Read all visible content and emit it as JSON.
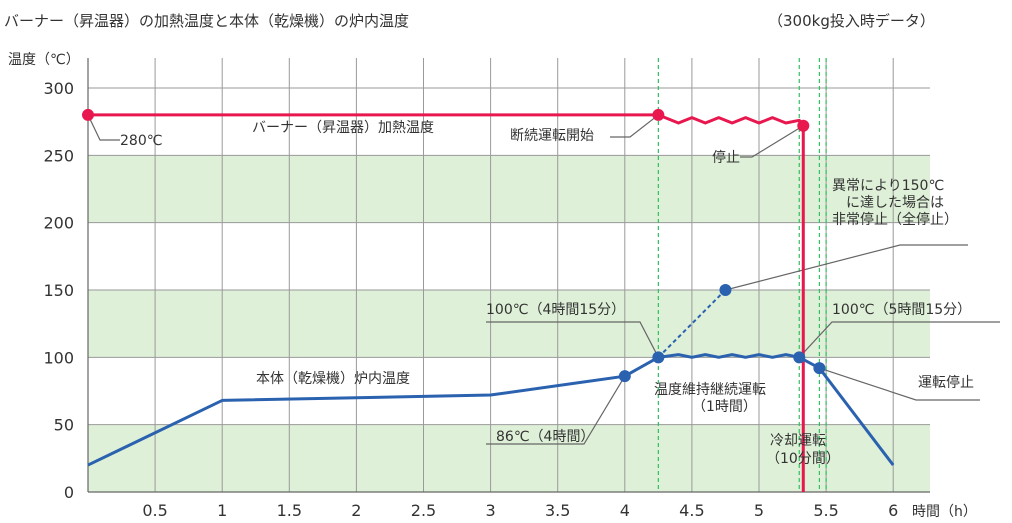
{
  "title": "バーナー（昇温器）の加熱温度と本体（乾燥機）の炉内温度",
  "subtitle": "（300kg投入時データ）",
  "colors": {
    "band": "#dff0d8",
    "grid": "#9a9a9a",
    "burner": "#e8174d",
    "body": "#2a62b0",
    "guide": "#2fbf60"
  },
  "chart_data": {
    "type": "line",
    "xlabel": "時間（h）",
    "ylabel": "温度（℃）",
    "xlim": [
      0,
      6.3
    ],
    "ylim": [
      0,
      300
    ],
    "x_ticks": [
      "0.5",
      "1",
      "1.5",
      "2",
      "2.5",
      "3",
      "3.5",
      "4",
      "4.5",
      "5",
      "5.5",
      "6"
    ],
    "y_ticks": [
      "0",
      "50",
      "100",
      "150",
      "200",
      "250",
      "300"
    ],
    "grid": true,
    "bands": [
      [
        0,
        50
      ],
      [
        100,
        150
      ],
      [
        200,
        250
      ]
    ],
    "series": [
      {
        "name": "バーナー（昇温器）加熱温度",
        "points": [
          [
            0,
            280
          ],
          [
            4.25,
            280
          ],
          [
            4.3,
            278
          ],
          [
            4.4,
            274
          ],
          [
            4.5,
            278
          ],
          [
            4.6,
            274
          ],
          [
            4.7,
            278
          ],
          [
            4.8,
            274
          ],
          [
            4.9,
            278
          ],
          [
            5.0,
            274
          ],
          [
            5.1,
            278
          ],
          [
            5.2,
            274
          ],
          [
            5.3,
            276
          ],
          [
            5.33,
            272
          ],
          [
            5.33,
            0
          ]
        ],
        "markers": [
          [
            0,
            280
          ],
          [
            4.25,
            280
          ],
          [
            5.33,
            272
          ]
        ]
      },
      {
        "name": "本体（乾燥機）炉内温度",
        "points": [
          [
            0,
            20
          ],
          [
            1.0,
            68
          ],
          [
            3.0,
            72
          ],
          [
            4.0,
            86
          ],
          [
            4.25,
            100
          ],
          [
            4.4,
            102
          ],
          [
            4.5,
            100
          ],
          [
            4.6,
            102
          ],
          [
            4.7,
            100
          ],
          [
            4.8,
            102
          ],
          [
            4.9,
            100
          ],
          [
            5.0,
            102
          ],
          [
            5.1,
            100
          ],
          [
            5.2,
            102
          ],
          [
            5.3,
            100
          ],
          [
            5.45,
            92
          ],
          [
            6.0,
            20
          ]
        ],
        "markers": [
          [
            4.0,
            86
          ],
          [
            4.25,
            100
          ],
          [
            5.3,
            100
          ],
          [
            5.45,
            92
          ]
        ]
      }
    ],
    "abnormal_line": {
      "points": [
        [
          4.25,
          100
        ],
        [
          4.75,
          150
        ]
      ],
      "marker": [
        4.75,
        150
      ]
    },
    "guide_lines": [
      4.25,
      5.3,
      5.45,
      5.5
    ],
    "annotations": {
      "start_temp": "280℃",
      "burner_label": "バーナー（昇温器）加熱温度",
      "intermittent_start": "断続運転開始",
      "stop": "停止",
      "abnormal": [
        "異常により150℃",
        "に達した場合は",
        "非常停止（全停止）"
      ],
      "at_4h15": "100℃（4時間15分）",
      "at_5h15": "100℃（5時間15分）",
      "body_label": "本体（乾燥機）炉内温度",
      "maintain": [
        "温度維持継続運転",
        "（1時間）"
      ],
      "op_stop": "運転停止",
      "at_4h": "86℃（4時間）",
      "cooling": [
        "冷却運転",
        "（10分間）"
      ]
    }
  }
}
